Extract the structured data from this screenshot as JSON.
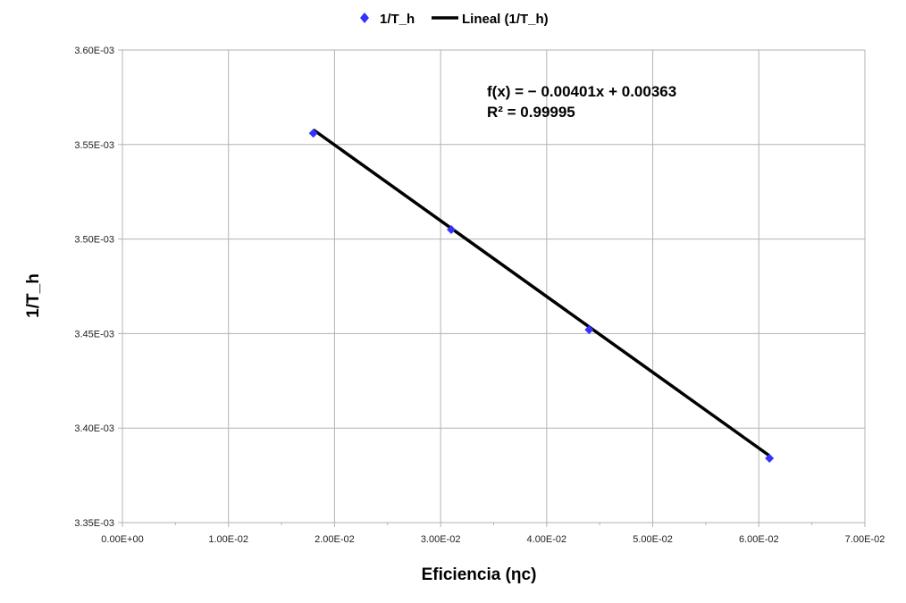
{
  "chart_data": {
    "type": "scatter",
    "xlabel": "Eficiencia (ηc)",
    "ylabel": "1/T_h",
    "xlim": [
      0,
      0.07
    ],
    "ylim": [
      0.00335,
      0.0036
    ],
    "x_ticks": [
      0,
      0.01,
      0.02,
      0.03,
      0.04,
      0.05,
      0.06,
      0.07
    ],
    "x_tick_labels": [
      "0.00E+00",
      "1.00E-02",
      "2.00E-02",
      "3.00E-02",
      "4.00E-02",
      "5.00E-02",
      "6.00E-02",
      "7.00E-02"
    ],
    "y_ticks": [
      0.00335,
      0.0034,
      0.00345,
      0.0035,
      0.00355,
      0.0036
    ],
    "y_tick_labels": [
      "3.35E-03",
      "3.40E-03",
      "3.45E-03",
      "3.50E-03",
      "3.55E-03",
      "3.60E-03"
    ],
    "grid": true,
    "legend_position": "top-center",
    "series": [
      {
        "name": "1/T_h",
        "marker": "diamond",
        "color": "#3333ff",
        "x": [
          0.018,
          0.031,
          0.044,
          0.061
        ],
        "y": [
          0.003556,
          0.003505,
          0.003452,
          0.003384
        ]
      }
    ],
    "trendline": {
      "name": "Lineal (1/T_h)",
      "color": "#000000",
      "slope": -0.00401,
      "intercept": 0.00363,
      "x_range": [
        0.018,
        0.061
      ]
    },
    "annotations": [
      "f(x) = − 0.00401x + 0.00363",
      "R² = 0.99995"
    ]
  }
}
